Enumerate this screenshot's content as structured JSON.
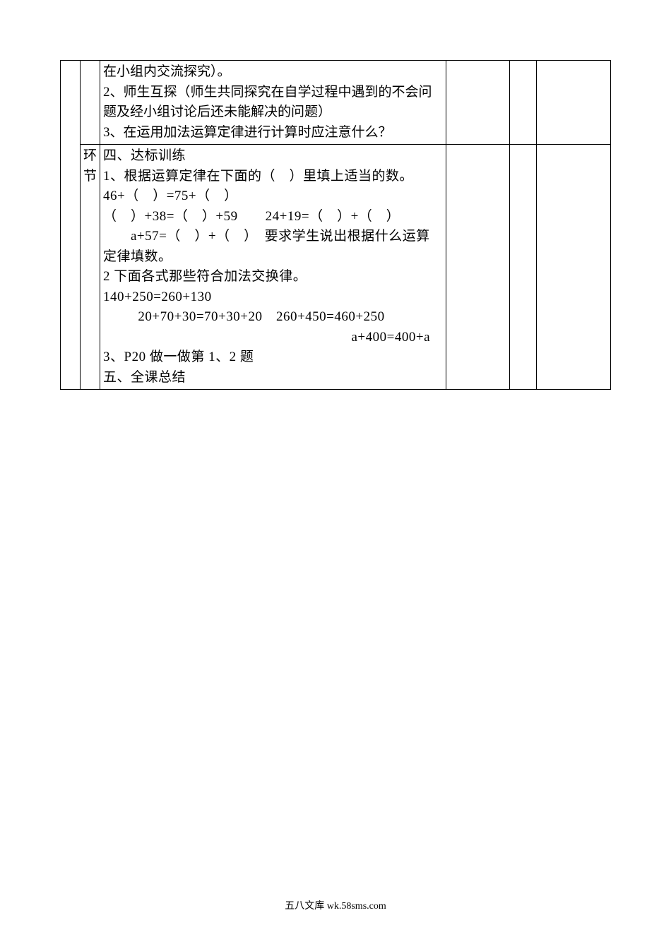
{
  "row1": {
    "lines": [
      "在小组内交流探究）。",
      "2、师生互探（师生共同探究在自学过程中遇到的不会问题及经小组讨论后还未能解决的问题）",
      "3、在运用加法运算定律进行计算时应注意什么？"
    ]
  },
  "row2": {
    "sideLabel": "环节",
    "lines": {
      "t1": "四、达标训练",
      "t2": "1、根据运算定律在下面的（　）里填上适当的数。",
      "e1": "46+（　）=75+（　）",
      "e2": "（　）+38=（　）+59　　24+19=（　）+（　）",
      "e3": "　　a+57=（　）+（　）　要求学生说出根据什么运算定律填数。",
      "t3": "2 下面各式那些符合加法交换律。",
      "e4": "140+250=260+130　　　",
      "e5": "20+70+30=70+30+20　260+450=460+250",
      "e6": "a+400=400+a",
      "t4": "3、P20 做一做第 1、2 题",
      "t5": "五、全课总结"
    }
  },
  "footer": "五八文库 wk.58sms.com"
}
